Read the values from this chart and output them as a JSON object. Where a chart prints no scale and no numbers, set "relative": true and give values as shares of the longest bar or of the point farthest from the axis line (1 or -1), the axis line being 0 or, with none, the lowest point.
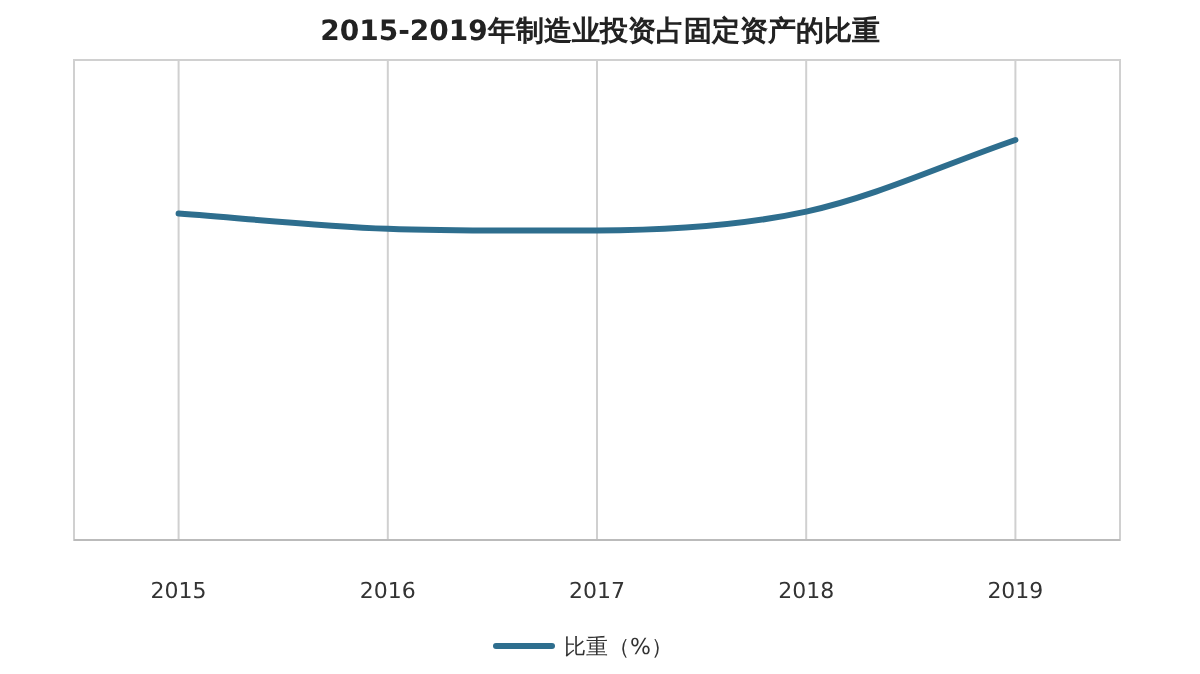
{
  "chart_data": {
    "type": "line",
    "title": "2015-2019年制造业投资占固定资产的比重",
    "categories": [
      "2015",
      "2016",
      "2017",
      "2018",
      "2019"
    ],
    "relative": true,
    "grid": "x",
    "legend": "bottom",
    "series": [
      {
        "name": "比重（%）",
        "color": "#2e6e8e",
        "values": [
          0.816,
          0.778,
          0.774,
          0.821,
          1
        ]
      }
    ]
  }
}
